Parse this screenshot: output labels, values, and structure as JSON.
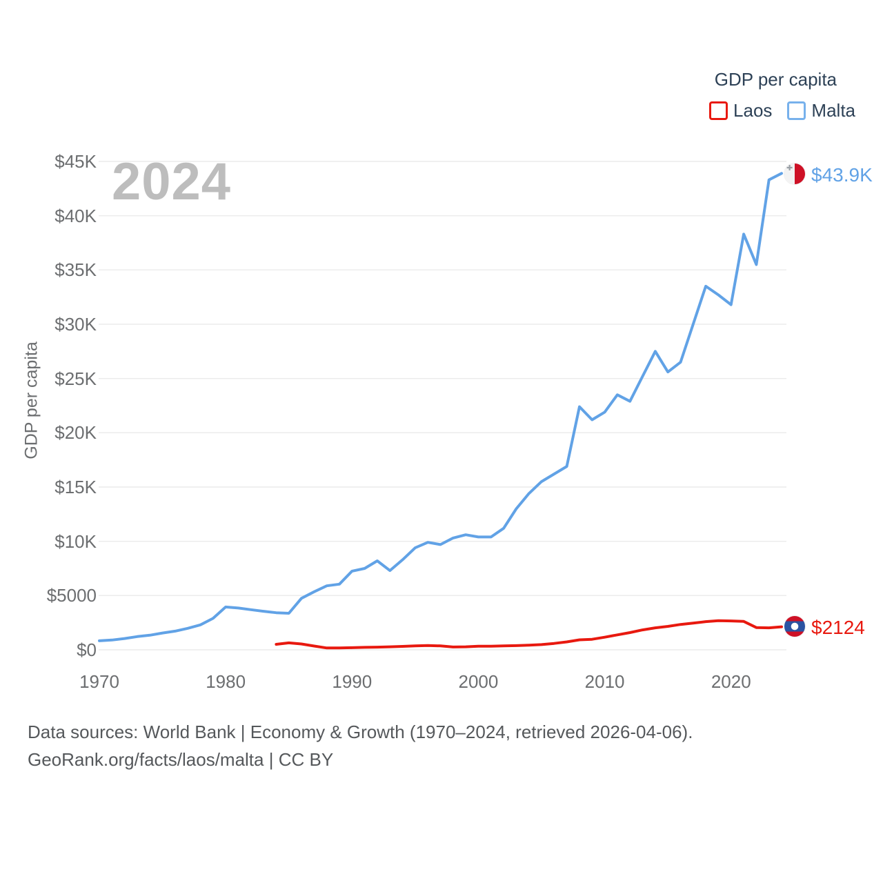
{
  "legend": {
    "title": "GDP per capita",
    "items": [
      {
        "label": "Laos",
        "color": "#e8190f"
      },
      {
        "label": "Malta",
        "color": "#77b1ec"
      }
    ]
  },
  "end_labels": {
    "malta": "$43.9K",
    "laos": "$2124"
  },
  "footer": {
    "line1": "Data sources: World Bank | Economy & Growth (1970–2024, retrieved 2026-04-06).",
    "line2": "GeoRank.org/facts/laos/malta | CC BY"
  },
  "icons": [
    {
      "name": "malta-flag-icon",
      "shape": "circle, left half white with small gray cross, right half red"
    },
    {
      "name": "laos-flag-icon",
      "shape": "circle, red-blue-red horizontal bands with white center disc"
    }
  ],
  "chart_data": {
    "type": "line",
    "title": "GDP per capita",
    "watermark": "2024",
    "xlabel": "",
    "ylabel": "GDP per capita",
    "xlim": [
      1970,
      2024
    ],
    "ylim": [
      0,
      45000
    ],
    "grid": true,
    "legend_position": "top-right",
    "x_ticks": [
      1970,
      1980,
      1990,
      2000,
      2010,
      2020
    ],
    "y_ticks": [
      {
        "value": 0,
        "label": "$0"
      },
      {
        "value": 5000,
        "label": "$5000"
      },
      {
        "value": 10000,
        "label": "$10K"
      },
      {
        "value": 15000,
        "label": "$15K"
      },
      {
        "value": 20000,
        "label": "$20K"
      },
      {
        "value": 25000,
        "label": "$25K"
      },
      {
        "value": 30000,
        "label": "$30K"
      },
      {
        "value": 35000,
        "label": "$35K"
      },
      {
        "value": 40000,
        "label": "$40K"
      },
      {
        "value": 45000,
        "label": "$45K"
      }
    ],
    "series": [
      {
        "name": "Laos",
        "color": "#e8190f",
        "start_year": 1984,
        "end_year": 2024,
        "end_value_label": "$2124",
        "values": [
          510,
          640,
          540,
          350,
          170,
          180,
          200,
          230,
          250,
          280,
          320,
          370,
          400,
          360,
          260,
          280,
          330,
          340,
          360,
          390,
          430,
          480,
          590,
          730,
          920,
          970,
          1160,
          1380,
          1590,
          1840,
          2030,
          2160,
          2340,
          2460,
          2600,
          2690,
          2660,
          2620,
          2050,
          2030,
          2124
        ]
      },
      {
        "name": "Malta",
        "color": "#61a2e6",
        "start_year": 1970,
        "end_year": 2024,
        "end_value_label": "$43.9K",
        "values": [
          830,
          900,
          1040,
          1220,
          1350,
          1550,
          1720,
          1980,
          2300,
          2900,
          3950,
          3850,
          3700,
          3550,
          3420,
          3370,
          4750,
          5350,
          5900,
          6050,
          7250,
          7500,
          8200,
          7300,
          8300,
          9400,
          9900,
          9700,
          10300,
          10600,
          10400,
          10400,
          11200,
          13000,
          14400,
          15500,
          16200,
          16900,
          22400,
          21200,
          21900,
          23500,
          22900,
          25200,
          27500,
          25600,
          26500,
          30000,
          33500,
          32700,
          31800,
          38300,
          35500,
          43300,
          43900
        ]
      }
    ]
  }
}
